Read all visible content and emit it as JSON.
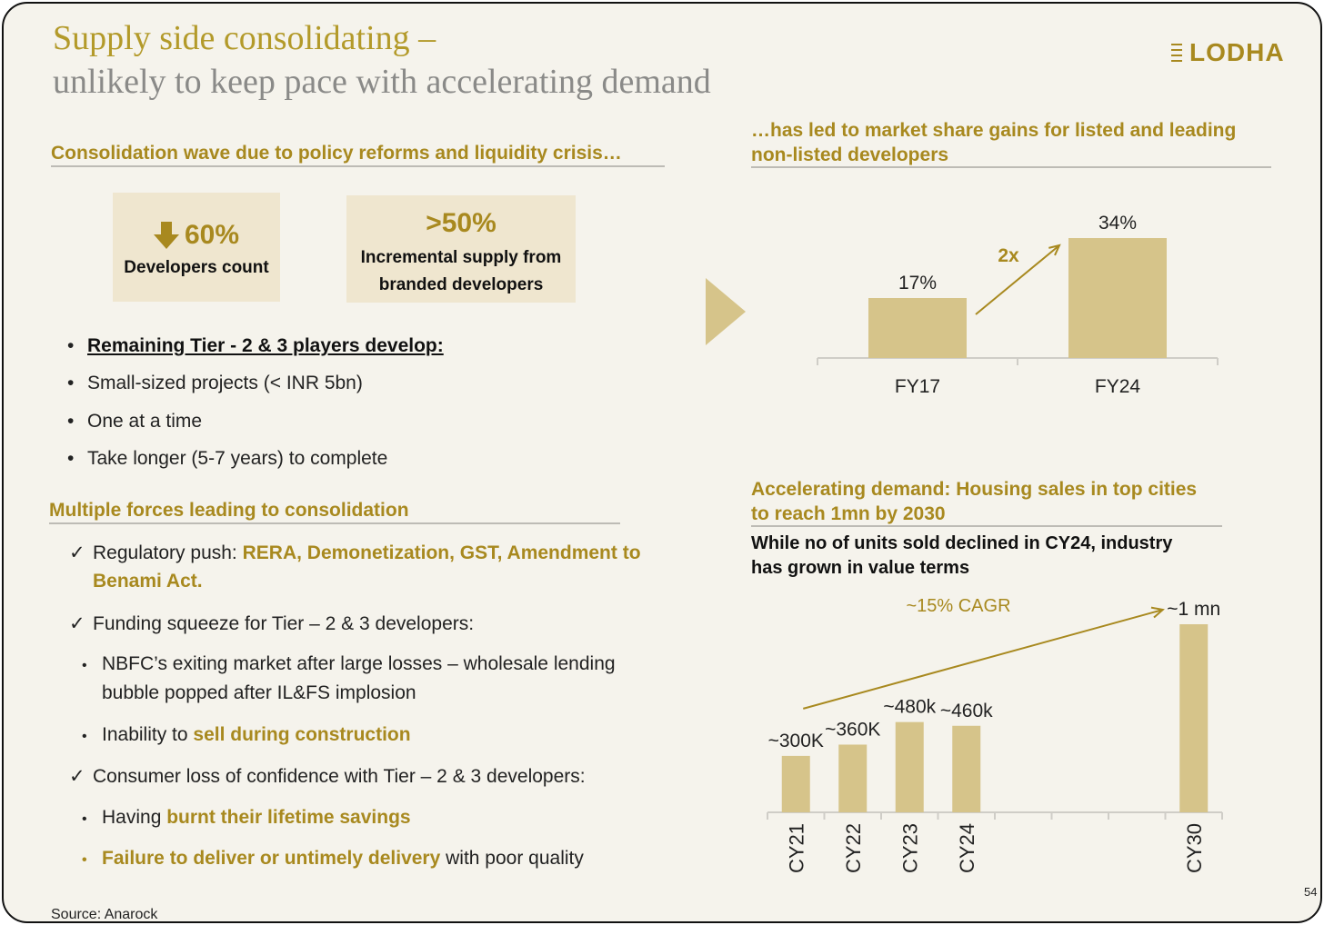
{
  "title": {
    "line1": "Supply side consolidating –",
    "line2": "unlikely to keep pace with accelerating demand"
  },
  "logo": {
    "text": "LODHA",
    "icon": "logo-icon"
  },
  "left": {
    "heading1": "Consolidation wave due to policy reforms and liquidity crisis…",
    "kpis": [
      {
        "value": "60%",
        "icon": "down-arrow-icon",
        "caption": "Developers count"
      },
      {
        "value": ">50%",
        "caption_line1": "Incremental supply from",
        "caption_line2": "branded developers"
      }
    ],
    "tier_heading": "Remaining Tier - 2 & 3 players  develop:",
    "tier_bullets": [
      "Small-sized projects (< INR 5bn)",
      "One at a time",
      "Take longer (5-7 years) to complete"
    ],
    "heading2": "Multiple forces leading to consolidation",
    "forces": {
      "regulatory_label": "Regulatory push: ",
      "regulatory_items_line1": "RERA, Demonetization, GST, Amendment to",
      "regulatory_items_line2": "Benami Act.",
      "funding": "Funding squeeze for Tier – 2 & 3 developers:",
      "nbfc_line1": "NBFC’s exiting market after large losses – wholesale lending",
      "nbfc_line2": "bubble popped after IL&FS implosion",
      "inability_prefix": "Inability to ",
      "inability_highlight": "sell during construction",
      "consumer": "Consumer loss of confidence with Tier – 2 & 3 developers:",
      "savings_prefix": "Having ",
      "savings_highlight": "burnt their lifetime savings",
      "delivery_highlight": "Failure to deliver or untimely delivery",
      "delivery_suffix": " with poor quality"
    },
    "source": "Source: Anarock"
  },
  "right": {
    "share_heading_line1": "…has led to market share gains for listed and leading",
    "share_heading_line2": "non-listed developers",
    "demand_heading_line1": "Accelerating demand: Housing sales in top cities",
    "demand_heading_line2": "to reach 1mn by 2030",
    "demand_sub_line1": "While no of units sold declined in CY24, industry",
    "demand_sub_line2": "has grown in value terms"
  },
  "page_number": "54",
  "colors": {
    "gold": "#a8891f",
    "bar": "#d6c48a",
    "kpi_bg": "#efe6cf",
    "bg": "#f5f3ec"
  },
  "chart_data": [
    {
      "type": "bar",
      "title": "Market share of listed and leading non-listed developers",
      "categories": [
        "FY17",
        "FY24"
      ],
      "values": [
        17,
        34
      ],
      "labels": [
        "17%",
        "34%"
      ],
      "annotation": "2x",
      "ylim": [
        0,
        34
      ]
    },
    {
      "type": "bar",
      "title": "Housing sales in top cities",
      "categories": [
        "CY21",
        "CY22",
        "CY23",
        "CY24",
        "",
        "",
        "",
        "CY30"
      ],
      "values": [
        300,
        360,
        480,
        460,
        null,
        null,
        null,
        1000
      ],
      "labels": [
        "~300K",
        "~360K",
        "~480k",
        "~460k",
        "",
        "",
        "",
        "~1 mn"
      ],
      "unit": "thousand units",
      "annotation": "~15% CAGR",
      "ylim": [
        0,
        1000
      ]
    }
  ]
}
